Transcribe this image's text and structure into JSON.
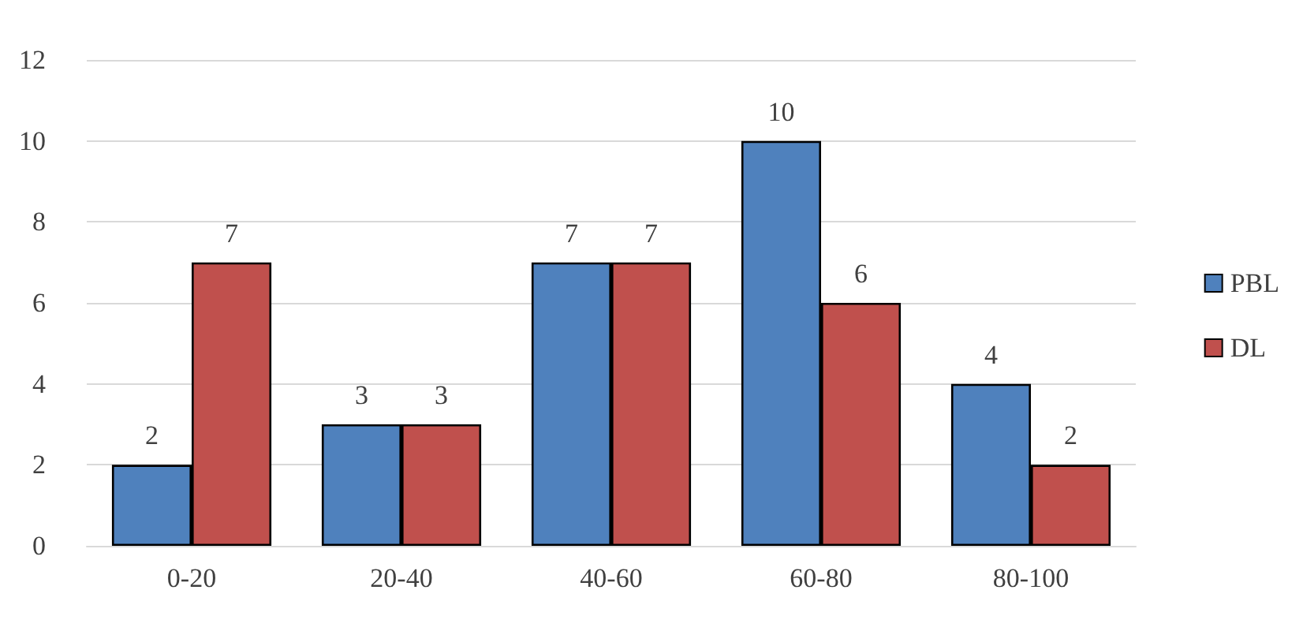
{
  "chart_data": {
    "type": "bar",
    "categories": [
      "0-20",
      "20-40",
      "40-60",
      "60-80",
      "80-100"
    ],
    "series": [
      {
        "name": "PBL",
        "color": "#4f81bd",
        "values": [
          2,
          3,
          7,
          10,
          4
        ]
      },
      {
        "name": "DL",
        "color": "#c0504d",
        "values": [
          7,
          3,
          7,
          6,
          2
        ]
      }
    ],
    "ylim": [
      0,
      12
    ],
    "yticks": [
      0,
      2,
      4,
      6,
      8,
      10,
      12
    ],
    "grid": "y",
    "legend": "right",
    "data_labels": true
  }
}
